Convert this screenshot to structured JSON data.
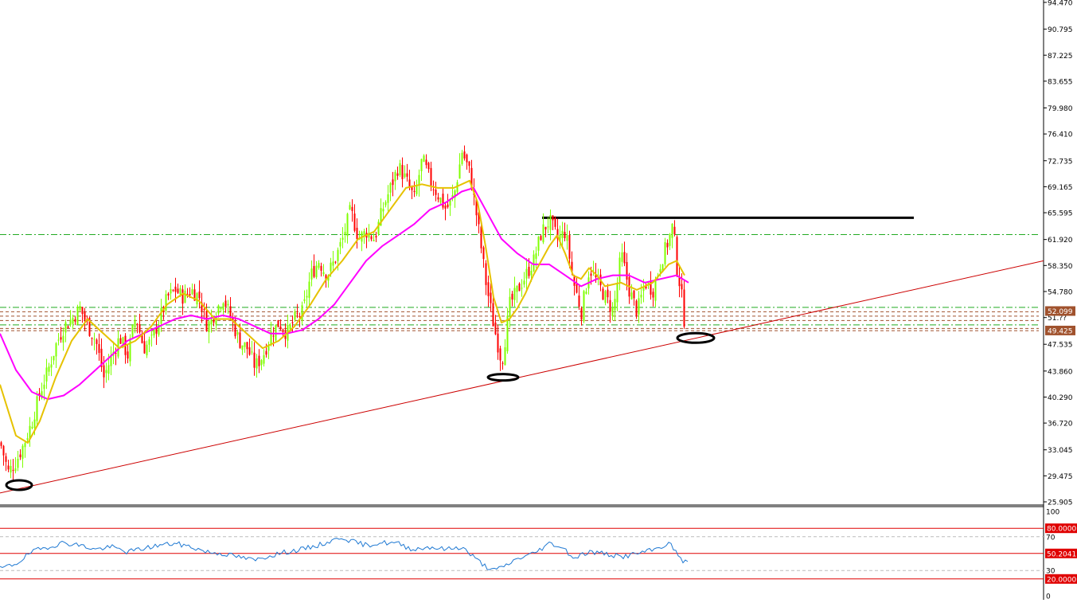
{
  "chart_data": [
    {
      "type": "candlestick",
      "y_axis_ticks": [
        "94.470",
        "90.795",
        "87.225",
        "83.655",
        "79.980",
        "76.410",
        "72.735",
        "69.165",
        "65.595",
        "61.920",
        "58.350",
        "54.780",
        "51.??",
        "47.535",
        "43.860",
        "40.290",
        "36.720",
        "33.045",
        "29.475",
        "25.905"
      ],
      "ylim": [
        25.905,
        94.47
      ],
      "price_tags": [
        {
          "label": "52.099",
          "value": 52.099,
          "color": "#a0522d"
        },
        {
          "label": "49.425",
          "value": 49.425,
          "color": "#a0522d"
        }
      ],
      "resistance_line": {
        "value": 64.9,
        "color": "#000000"
      },
      "dash_levels": [
        62.6,
        52.6,
        52.0,
        51.4,
        50.8,
        50.2,
        49.7,
        49.4
      ],
      "trendline": {
        "from_value": 28.0,
        "to_value": 59.0,
        "color": "#cc0000"
      },
      "series": [
        {
          "name": "",
          "kind": "ohlc",
          "bull_color": "#7fff00",
          "bear_color": "#ff0000"
        },
        {
          "name": "",
          "kind": "ma-fast",
          "color": "#e6c200"
        },
        {
          "name": "",
          "kind": "ma-slow",
          "color": "#ff00ff"
        }
      ],
      "close_path": [
        [
          0,
          34
        ],
        [
          10,
          30
        ],
        [
          20,
          31.5
        ],
        [
          30,
          34
        ],
        [
          40,
          37
        ],
        [
          50,
          41
        ],
        [
          60,
          44
        ],
        [
          70,
          47.5
        ],
        [
          80,
          50
        ],
        [
          90,
          51
        ],
        [
          100,
          52.5
        ],
        [
          110,
          50
        ],
        [
          120,
          48
        ],
        [
          130,
          43
        ],
        [
          140,
          46
        ],
        [
          150,
          48.5
        ],
        [
          160,
          46
        ],
        [
          170,
          51.5
        ],
        [
          180,
          47
        ],
        [
          190,
          48
        ],
        [
          200,
          51
        ],
        [
          210,
          54
        ],
        [
          220,
          55
        ],
        [
          230,
          54
        ],
        [
          240,
          55
        ],
        [
          250,
          54
        ],
        [
          260,
          50
        ],
        [
          270,
          52
        ],
        [
          280,
          54
        ],
        [
          290,
          51
        ],
        [
          300,
          48
        ],
        [
          310,
          47
        ],
        [
          320,
          44.5
        ],
        [
          330,
          46
        ],
        [
          340,
          49
        ],
        [
          350,
          50.5
        ],
        [
          360,
          49
        ],
        [
          370,
          51
        ],
        [
          380,
          52
        ],
        [
          390,
          57
        ],
        [
          400,
          59
        ],
        [
          410,
          57
        ],
        [
          420,
          59
        ],
        [
          430,
          62
        ],
        [
          440,
          66
        ],
        [
          450,
          62
        ],
        [
          460,
          63
        ],
        [
          470,
          62
        ],
        [
          480,
          66
        ],
        [
          490,
          69
        ],
        [
          500,
          72
        ],
        [
          510,
          70
        ],
        [
          520,
          67.5
        ],
        [
          530,
          73
        ],
        [
          540,
          70
        ],
        [
          550,
          68
        ],
        [
          560,
          66
        ],
        [
          570,
          68
        ],
        [
          580,
          74
        ],
        [
          590,
          71
        ],
        [
          600,
          64
        ],
        [
          610,
          56
        ],
        [
          620,
          50
        ],
        [
          630,
          45
        ],
        [
          640,
          53
        ],
        [
          650,
          55
        ],
        [
          660,
          57
        ],
        [
          670,
          59
        ],
        [
          680,
          63
        ],
        [
          690,
          64.5
        ],
        [
          700,
          62
        ],
        [
          710,
          63
        ],
        [
          720,
          56
        ],
        [
          730,
          52
        ],
        [
          740,
          58
        ],
        [
          750,
          56
        ],
        [
          760,
          54
        ],
        [
          770,
          52
        ],
        [
          780,
          60
        ],
        [
          790,
          55
        ],
        [
          800,
          52
        ],
        [
          810,
          56
        ],
        [
          820,
          55
        ],
        [
          830,
          59
        ],
        [
          840,
          62
        ],
        [
          845,
          64
        ],
        [
          850,
          58
        ],
        [
          855,
          55
        ],
        [
          860,
          50
        ]
      ],
      "ma_fast": [
        [
          0,
          42
        ],
        [
          20,
          35
        ],
        [
          35,
          34
        ],
        [
          50,
          37
        ],
        [
          70,
          43
        ],
        [
          90,
          48
        ],
        [
          110,
          51
        ],
        [
          130,
          49
        ],
        [
          150,
          47
        ],
        [
          170,
          48
        ],
        [
          190,
          50
        ],
        [
          210,
          53
        ],
        [
          230,
          54.5
        ],
        [
          250,
          53.5
        ],
        [
          270,
          51
        ],
        [
          290,
          51
        ],
        [
          310,
          49
        ],
        [
          330,
          47
        ],
        [
          350,
          48
        ],
        [
          370,
          50
        ],
        [
          390,
          53
        ],
        [
          410,
          56.5
        ],
        [
          430,
          59
        ],
        [
          450,
          62
        ],
        [
          470,
          63
        ],
        [
          490,
          66
        ],
        [
          510,
          69
        ],
        [
          530,
          69.5
        ],
        [
          550,
          69
        ],
        [
          570,
          69
        ],
        [
          590,
          70
        ],
        [
          600,
          67
        ],
        [
          610,
          61
        ],
        [
          620,
          54
        ],
        [
          630,
          50.5
        ],
        [
          640,
          51
        ],
        [
          650,
          52.5
        ],
        [
          660,
          54.5
        ],
        [
          670,
          57
        ],
        [
          680,
          59
        ],
        [
          690,
          61
        ],
        [
          700,
          62.5
        ],
        [
          710,
          60
        ],
        [
          720,
          57
        ],
        [
          730,
          56.5
        ],
        [
          740,
          58
        ],
        [
          750,
          57
        ],
        [
          760,
          55.5
        ],
        [
          780,
          56
        ],
        [
          800,
          55
        ],
        [
          820,
          56
        ],
        [
          840,
          58.5
        ],
        [
          850,
          59
        ],
        [
          860,
          57
        ]
      ],
      "ma_slow": [
        [
          0,
          49
        ],
        [
          20,
          44
        ],
        [
          40,
          41
        ],
        [
          60,
          40
        ],
        [
          80,
          40.5
        ],
        [
          100,
          42
        ],
        [
          120,
          44
        ],
        [
          140,
          46
        ],
        [
          160,
          48
        ],
        [
          180,
          49
        ],
        [
          200,
          50
        ],
        [
          220,
          51
        ],
        [
          240,
          51.5
        ],
        [
          260,
          51
        ],
        [
          280,
          51.5
        ],
        [
          300,
          51
        ],
        [
          320,
          50
        ],
        [
          340,
          49
        ],
        [
          360,
          49
        ],
        [
          380,
          49.5
        ],
        [
          400,
          51
        ],
        [
          420,
          53
        ],
        [
          440,
          56
        ],
        [
          460,
          59
        ],
        [
          480,
          61
        ],
        [
          500,
          62.5
        ],
        [
          520,
          64
        ],
        [
          540,
          66
        ],
        [
          560,
          67
        ],
        [
          580,
          68.5
        ],
        [
          595,
          69
        ],
        [
          610,
          66
        ],
        [
          630,
          62
        ],
        [
          650,
          60
        ],
        [
          670,
          58.5
        ],
        [
          690,
          58.5
        ],
        [
          710,
          57
        ],
        [
          730,
          55.5
        ],
        [
          750,
          56.5
        ],
        [
          770,
          57
        ],
        [
          790,
          57
        ],
        [
          810,
          56
        ],
        [
          830,
          56.5
        ],
        [
          850,
          57
        ],
        [
          865,
          56
        ]
      ],
      "markers": [
        {
          "label": "",
          "at_x": 24,
          "value": 28.2
        },
        {
          "label": "",
          "at_x": 632,
          "value": 43.0
        },
        {
          "label": "",
          "at_x": 874,
          "value": 48.4
        }
      ]
    },
    {
      "type": "line",
      "name": "oscillator",
      "y_axis_ticks": [
        "100",
        "70",
        "30",
        "0"
      ],
      "ylim": [
        0,
        100
      ],
      "levels": [
        {
          "label": "80.0000",
          "value": 80
        },
        {
          "label": "50.2041",
          "value": 50.2041
        },
        {
          "label": "20.0000",
          "value": 20
        }
      ],
      "series_color": "#1e78d2",
      "values": [
        [
          0,
          32
        ],
        [
          20,
          38
        ],
        [
          40,
          52
        ],
        [
          60,
          58
        ],
        [
          80,
          63
        ],
        [
          100,
          60
        ],
        [
          120,
          55
        ],
        [
          140,
          58
        ],
        [
          160,
          52
        ],
        [
          180,
          56
        ],
        [
          200,
          60
        ],
        [
          220,
          62
        ],
        [
          240,
          58
        ],
        [
          260,
          52
        ],
        [
          280,
          50
        ],
        [
          300,
          46
        ],
        [
          320,
          42
        ],
        [
          340,
          48
        ],
        [
          360,
          52
        ],
        [
          380,
          55
        ],
        [
          400,
          60
        ],
        [
          420,
          66
        ],
        [
          430,
          70
        ],
        [
          440,
          65
        ],
        [
          460,
          60
        ],
        [
          480,
          63
        ],
        [
          500,
          62
        ],
        [
          510,
          58
        ],
        [
          520,
          55
        ],
        [
          540,
          58
        ],
        [
          560,
          55
        ],
        [
          580,
          58
        ],
        [
          600,
          42
        ],
        [
          610,
          35
        ],
        [
          620,
          30
        ],
        [
          630,
          33
        ],
        [
          650,
          44
        ],
        [
          670,
          50
        ],
        [
          690,
          62
        ],
        [
          700,
          60
        ],
        [
          710,
          55
        ],
        [
          720,
          45
        ],
        [
          740,
          52
        ],
        [
          760,
          50
        ],
        [
          780,
          46
        ],
        [
          800,
          50
        ],
        [
          820,
          54
        ],
        [
          840,
          62
        ],
        [
          845,
          58
        ],
        [
          850,
          50
        ],
        [
          860,
          40
        ],
        [
          865,
          38
        ]
      ]
    }
  ]
}
